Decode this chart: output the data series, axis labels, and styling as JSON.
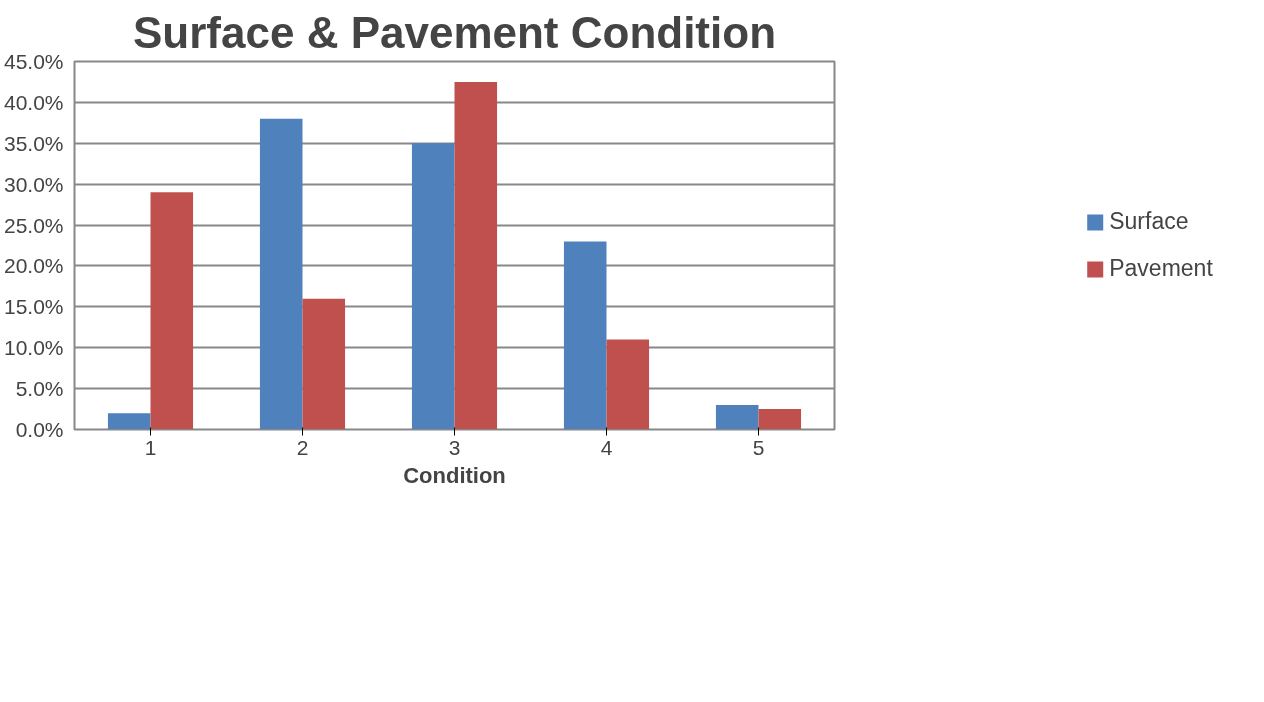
{
  "chart_data": {
    "type": "bar",
    "title": "Surface & Pavement Condition",
    "xlabel": "Condition",
    "categories": [
      "1",
      "2",
      "3",
      "4",
      "5"
    ],
    "series": [
      {
        "name": "Surface",
        "color": "#4f81bd",
        "values": [
          2,
          38,
          35,
          23,
          3
        ]
      },
      {
        "name": "Pavement",
        "color": "#c0504d",
        "values": [
          29,
          16,
          42.5,
          11,
          2.5
        ]
      }
    ],
    "ylim": [
      0,
      45
    ],
    "yticks": [
      {
        "value": 0,
        "label": "0.0%"
      },
      {
        "value": 5,
        "label": "5.0%"
      },
      {
        "value": 10,
        "label": "10.0%"
      },
      {
        "value": 15,
        "label": "15.0%"
      },
      {
        "value": 20,
        "label": "20.0%"
      },
      {
        "value": 25,
        "label": "25.0%"
      },
      {
        "value": 30,
        "label": "30.0%"
      },
      {
        "value": 35,
        "label": "35.0%"
      },
      {
        "value": 40,
        "label": "40.0%"
      },
      {
        "value": 45,
        "label": "45.0%"
      }
    ],
    "grid": "y",
    "legend": "right"
  }
}
